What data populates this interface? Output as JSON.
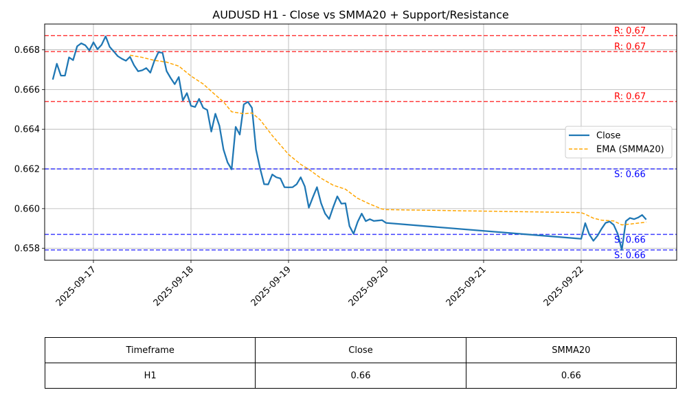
{
  "chart_data": {
    "type": "line",
    "title": "AUDUSD H1 - Close vs SMMA20 + Support/Resistance",
    "xlabel": "",
    "ylabel": "",
    "xlim": [
      "2025-09-16T12:00",
      "2025-09-22T23:30"
    ],
    "ylim": [
      0.6574,
      0.6693
    ],
    "x_ticks": [
      "2025-09-17",
      "2025-09-18",
      "2025-09-19",
      "2025-09-20",
      "2025-09-21",
      "2025-09-22"
    ],
    "y_ticks": [
      0.658,
      0.66,
      0.662,
      0.664,
      0.666,
      0.668
    ],
    "grid": true,
    "legend_position": "center-right",
    "series": [
      {
        "name": "Close",
        "color": "#1f77b4",
        "style": "solid",
        "points": [
          [
            "2025-09-16T14:00",
            0.6665
          ],
          [
            "2025-09-16T15:00",
            0.6673
          ],
          [
            "2025-09-16T16:00",
            0.6667
          ],
          [
            "2025-09-16T17:00",
            0.6667
          ],
          [
            "2025-09-16T18:00",
            0.66762
          ],
          [
            "2025-09-16T19:00",
            0.66748
          ],
          [
            "2025-09-16T20:00",
            0.66818
          ],
          [
            "2025-09-16T21:00",
            0.66833
          ],
          [
            "2025-09-16T22:00",
            0.66823
          ],
          [
            "2025-09-16T23:00",
            0.66797
          ],
          [
            "2025-09-17T00:00",
            0.66838
          ],
          [
            "2025-09-17T01:00",
            0.66803
          ],
          [
            "2025-09-17T02:00",
            0.66825
          ],
          [
            "2025-09-17T03:00",
            0.66868
          ],
          [
            "2025-09-17T04:00",
            0.66815
          ],
          [
            "2025-09-17T05:00",
            0.66792
          ],
          [
            "2025-09-17T06:00",
            0.66768
          ],
          [
            "2025-09-17T07:00",
            0.66755
          ],
          [
            "2025-09-17T08:00",
            0.66745
          ],
          [
            "2025-09-17T09:00",
            0.66765
          ],
          [
            "2025-09-17T10:00",
            0.66722
          ],
          [
            "2025-09-17T11:00",
            0.66692
          ],
          [
            "2025-09-17T12:00",
            0.66697
          ],
          [
            "2025-09-17T13:00",
            0.66708
          ],
          [
            "2025-09-17T14:00",
            0.66685
          ],
          [
            "2025-09-17T15:00",
            0.66745
          ],
          [
            "2025-09-17T16:00",
            0.66788
          ],
          [
            "2025-09-17T17:00",
            0.66785
          ],
          [
            "2025-09-17T18:00",
            0.66693
          ],
          [
            "2025-09-17T19:00",
            0.66658
          ],
          [
            "2025-09-17T20:00",
            0.66627
          ],
          [
            "2025-09-17T21:00",
            0.66663
          ],
          [
            "2025-09-17T22:00",
            0.66545
          ],
          [
            "2025-09-17T23:00",
            0.66582
          ],
          [
            "2025-09-18T00:00",
            0.66518
          ],
          [
            "2025-09-18T01:00",
            0.66512
          ],
          [
            "2025-09-18T02:00",
            0.66553
          ],
          [
            "2025-09-18T03:00",
            0.66508
          ],
          [
            "2025-09-18T04:00",
            0.66497
          ],
          [
            "2025-09-18T05:00",
            0.66388
          ],
          [
            "2025-09-18T06:00",
            0.66478
          ],
          [
            "2025-09-18T07:00",
            0.66417
          ],
          [
            "2025-09-18T08:00",
            0.66298
          ],
          [
            "2025-09-18T09:00",
            0.66233
          ],
          [
            "2025-09-18T10:00",
            0.66198
          ],
          [
            "2025-09-18T11:00",
            0.66412
          ],
          [
            "2025-09-18T12:00",
            0.66373
          ],
          [
            "2025-09-18T13:00",
            0.66525
          ],
          [
            "2025-09-18T14:00",
            0.66538
          ],
          [
            "2025-09-18T15:00",
            0.66508
          ],
          [
            "2025-09-18T16:00",
            0.66298
          ],
          [
            "2025-09-18T17:00",
            0.66203
          ],
          [
            "2025-09-18T18:00",
            0.66123
          ],
          [
            "2025-09-18T19:00",
            0.66122
          ],
          [
            "2025-09-18T20:00",
            0.66172
          ],
          [
            "2025-09-18T21:00",
            0.66158
          ],
          [
            "2025-09-18T22:00",
            0.66152
          ],
          [
            "2025-09-18T23:00",
            0.66108
          ],
          [
            "2025-09-19T00:00",
            0.66107
          ],
          [
            "2025-09-19T01:00",
            0.66108
          ],
          [
            "2025-09-19T02:00",
            0.66123
          ],
          [
            "2025-09-19T03:00",
            0.66158
          ],
          [
            "2025-09-19T04:00",
            0.66112
          ],
          [
            "2025-09-19T05:00",
            0.66005
          ],
          [
            "2025-09-19T06:00",
            0.66058
          ],
          [
            "2025-09-19T07:00",
            0.66108
          ],
          [
            "2025-09-19T08:00",
            0.66028
          ],
          [
            "2025-09-19T09:00",
            0.65975
          ],
          [
            "2025-09-19T10:00",
            0.65948
          ],
          [
            "2025-09-19T11:00",
            0.66008
          ],
          [
            "2025-09-19T12:00",
            0.66062
          ],
          [
            "2025-09-19T13:00",
            0.66025
          ],
          [
            "2025-09-19T14:00",
            0.66027
          ],
          [
            "2025-09-19T15:00",
            0.65912
          ],
          [
            "2025-09-19T16:00",
            0.65873
          ],
          [
            "2025-09-19T17:00",
            0.65933
          ],
          [
            "2025-09-19T18:00",
            0.65975
          ],
          [
            "2025-09-19T19:00",
            0.65937
          ],
          [
            "2025-09-19T20:00",
            0.65947
          ],
          [
            "2025-09-19T21:00",
            0.65938
          ],
          [
            "2025-09-19T22:00",
            0.6594
          ],
          [
            "2025-09-19T23:00",
            0.65942
          ],
          [
            "2025-09-20T00:00",
            0.65928
          ],
          [
            "2025-09-22T00:00",
            0.65848
          ],
          [
            "2025-09-22T01:00",
            0.65927
          ],
          [
            "2025-09-22T02:00",
            0.6587
          ],
          [
            "2025-09-22T03:00",
            0.65838
          ],
          [
            "2025-09-22T04:00",
            0.65863
          ],
          [
            "2025-09-22T05:00",
            0.65898
          ],
          [
            "2025-09-22T06:00",
            0.65928
          ],
          [
            "2025-09-22T07:00",
            0.65935
          ],
          [
            "2025-09-22T08:00",
            0.65918
          ],
          [
            "2025-09-22T09:00",
            0.65873
          ],
          [
            "2025-09-22T10:00",
            0.65792
          ],
          [
            "2025-09-22T11:00",
            0.65937
          ],
          [
            "2025-09-22T12:00",
            0.65953
          ],
          [
            "2025-09-22T13:00",
            0.65947
          ],
          [
            "2025-09-22T14:00",
            0.65955
          ],
          [
            "2025-09-22T15:00",
            0.65968
          ],
          [
            "2025-09-22T16:00",
            0.65945
          ]
        ]
      },
      {
        "name": "EMA (SMMA20)",
        "color": "#ffa500",
        "style": "dashed",
        "points": [
          [
            "2025-09-17T09:00",
            0.66773
          ],
          [
            "2025-09-17T12:00",
            0.66762
          ],
          [
            "2025-09-17T15:00",
            0.66747
          ],
          [
            "2025-09-17T18:00",
            0.66738
          ],
          [
            "2025-09-17T21:00",
            0.66718
          ],
          [
            "2025-09-18T00:00",
            0.66668
          ],
          [
            "2025-09-18T03:00",
            0.66628
          ],
          [
            "2025-09-18T06:00",
            0.66573
          ],
          [
            "2025-09-18T08:00",
            0.66538
          ],
          [
            "2025-09-18T10:00",
            0.66488
          ],
          [
            "2025-09-18T13:00",
            0.66478
          ],
          [
            "2025-09-18T15:00",
            0.66482
          ],
          [
            "2025-09-18T17:00",
            0.66448
          ],
          [
            "2025-09-18T20:00",
            0.66368
          ],
          [
            "2025-09-19T00:00",
            0.66273
          ],
          [
            "2025-09-19T03:00",
            0.66223
          ],
          [
            "2025-09-19T05:00",
            0.66198
          ],
          [
            "2025-09-19T08:00",
            0.66153
          ],
          [
            "2025-09-19T11:00",
            0.66118
          ],
          [
            "2025-09-19T14:00",
            0.66098
          ],
          [
            "2025-09-19T17:00",
            0.66052
          ],
          [
            "2025-09-19T20:00",
            0.66023
          ],
          [
            "2025-09-19T23:00",
            0.65998
          ],
          [
            "2025-09-20T00:00",
            0.65995
          ],
          [
            "2025-09-22T00:00",
            0.6598
          ],
          [
            "2025-09-22T01:00",
            0.65972
          ],
          [
            "2025-09-22T03:00",
            0.65952
          ],
          [
            "2025-09-22T05:00",
            0.65942
          ],
          [
            "2025-09-22T08:00",
            0.65938
          ],
          [
            "2025-09-22T10:00",
            0.65918
          ],
          [
            "2025-09-22T12:00",
            0.65922
          ],
          [
            "2025-09-22T16:00",
            0.65932
          ]
        ]
      }
    ],
    "resistance_lines": [
      {
        "value": 0.66872,
        "label": "R: 0.67",
        "color": "#ff0000"
      },
      {
        "value": 0.66791,
        "label": "R: 0.67",
        "color": "#ff0000"
      },
      {
        "value": 0.6654,
        "label": "R: 0.67",
        "color": "#ff0000"
      }
    ],
    "support_lines": [
      {
        "value": 0.662,
        "label": "S: 0.66",
        "color": "#0000ff"
      },
      {
        "value": 0.6587,
        "label": "S: 0.66",
        "color": "#0000ff"
      },
      {
        "value": 0.65792,
        "label": "S: 0.66",
        "color": "#0000ff"
      }
    ]
  },
  "table": {
    "headers": [
      "Timeframe",
      "Close",
      "SMMA20"
    ],
    "rows": [
      [
        "H1",
        "0.66",
        "0.66"
      ]
    ]
  }
}
